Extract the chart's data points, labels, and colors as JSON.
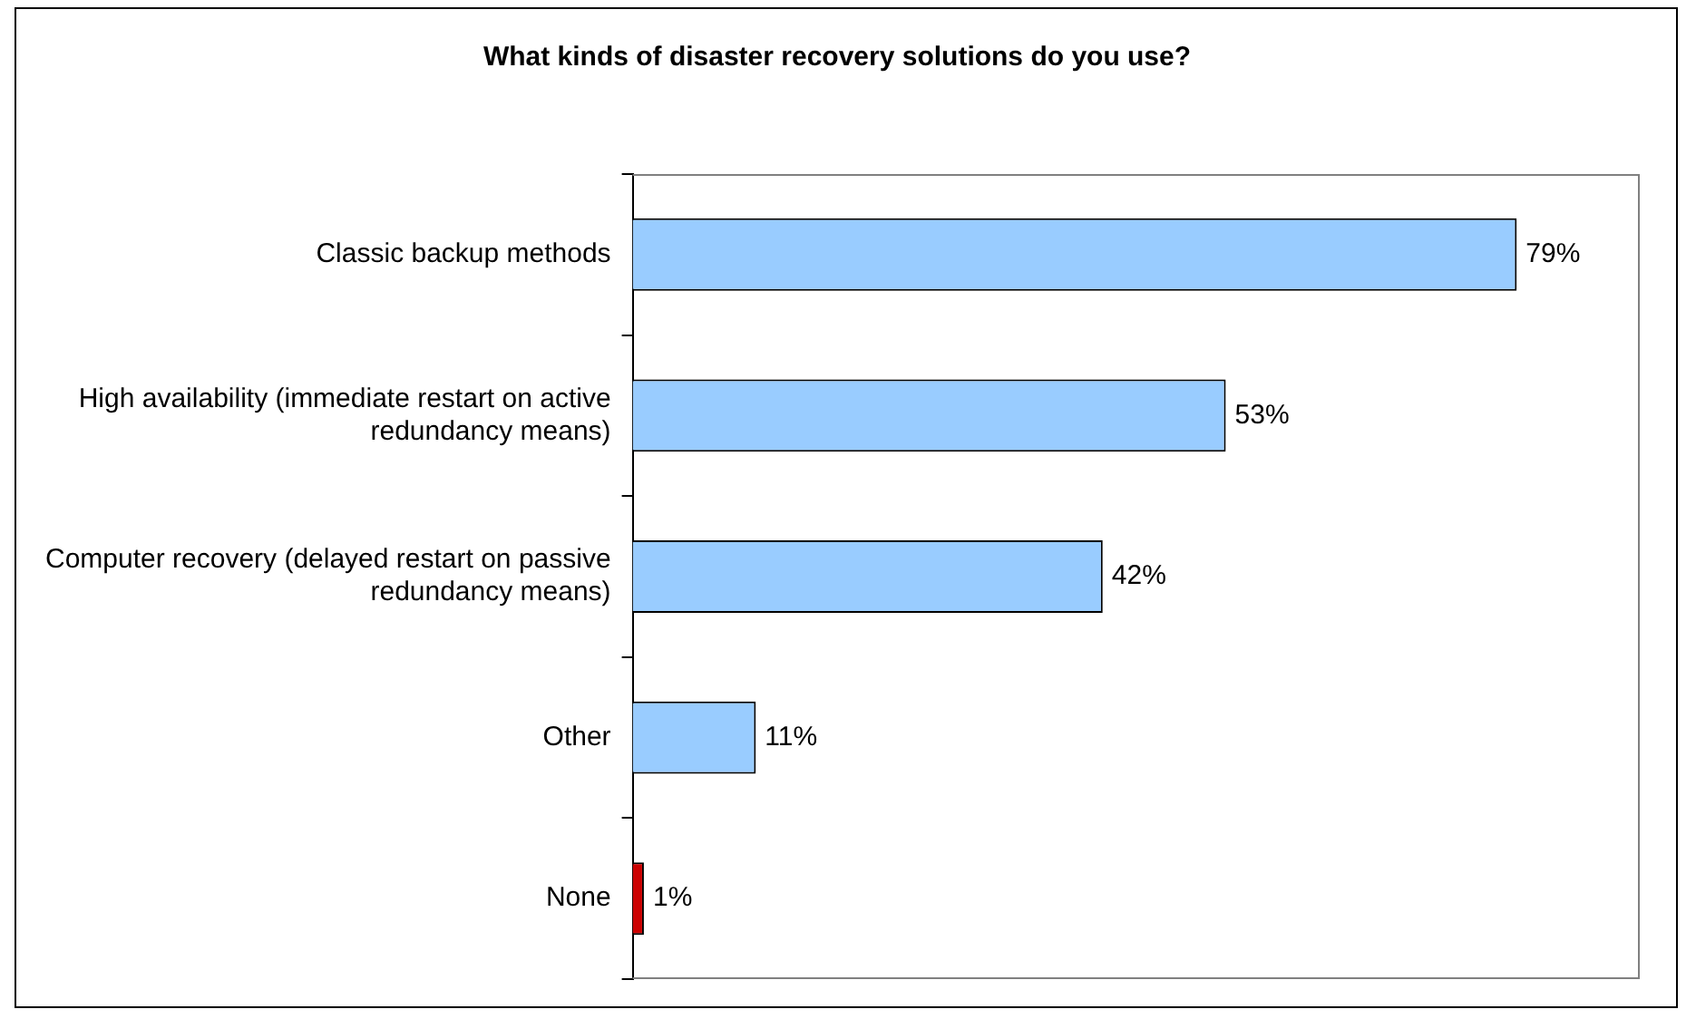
{
  "chart_data": {
    "type": "bar",
    "orientation": "horizontal",
    "title": "What kinds of disaster recovery solutions do you use?",
    "categories": [
      "Classic backup methods",
      "High availability (immediate restart on active redundancy means)",
      "Computer recovery (delayed restart on passive redundancy means)",
      "Other",
      "None"
    ],
    "values": [
      79,
      53,
      42,
      11,
      1
    ],
    "colors": [
      "#99ccff",
      "#99ccff",
      "#99ccff",
      "#99ccff",
      "#cc0000"
    ],
    "value_labels": [
      "79%",
      "53%",
      "42%",
      "11%",
      "1%"
    ],
    "legend": false,
    "grid": false
  }
}
